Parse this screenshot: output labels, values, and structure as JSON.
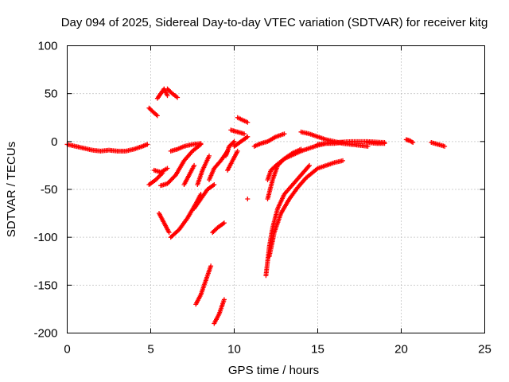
{
  "chart_data": {
    "type": "scatter",
    "title": "Day 094 of 2025, Sidereal Day-to-day VTEC variation (SDTVAR) for receiver kitg",
    "xlabel": "GPS time / hours",
    "ylabel": "SDTVAR / TECUs",
    "xlim": [
      0,
      25
    ],
    "ylim": [
      -200,
      100
    ],
    "xticks": [
      0,
      5,
      10,
      15,
      20,
      25
    ],
    "yticks": [
      -200,
      -150,
      -100,
      -50,
      0,
      50,
      100
    ],
    "grid": true,
    "marker": "+",
    "color": "#ff0000",
    "segments": [
      {
        "x": [
          0.0,
          0.5,
          1.0,
          1.5,
          2.0,
          2.5,
          3.0,
          3.5,
          4.0,
          4.5,
          4.8
        ],
        "y": [
          -3,
          -5,
          -7,
          -9,
          -10,
          -9,
          -10,
          -10,
          -8,
          -5,
          -3
        ]
      },
      {
        "x": [
          4.9,
          5.2,
          5.4
        ],
        "y": [
          35,
          30,
          27
        ]
      },
      {
        "x": [
          5.4,
          5.6,
          5.8,
          6.0
        ],
        "y": [
          45,
          50,
          55,
          48
        ]
      },
      {
        "x": [
          6.0,
          6.3,
          6.6
        ],
        "y": [
          55,
          50,
          46
        ]
      },
      {
        "x": [
          4.9,
          5.3,
          5.7
        ],
        "y": [
          -45,
          -40,
          -33
        ]
      },
      {
        "x": [
          5.2,
          5.6,
          6.0
        ],
        "y": [
          -30,
          -32,
          -28
        ]
      },
      {
        "x": [
          5.6,
          6.0,
          6.5,
          7.0,
          7.5,
          8.0
        ],
        "y": [
          -46,
          -44,
          -35,
          -20,
          -10,
          -3
        ]
      },
      {
        "x": [
          6.2,
          6.6,
          7.0,
          7.5,
          8.0
        ],
        "y": [
          -10,
          -8,
          -5,
          -3,
          -2
        ]
      },
      {
        "x": [
          5.5,
          5.8,
          6.1
        ],
        "y": [
          -75,
          -85,
          -95
        ]
      },
      {
        "x": [
          6.2,
          6.7,
          7.2,
          7.7,
          8.0
        ],
        "y": [
          -100,
          -92,
          -80,
          -65,
          -55
        ]
      },
      {
        "x": [
          7.0,
          7.3,
          7.6
        ],
        "y": [
          -45,
          -35,
          -25
        ]
      },
      {
        "x": [
          7.6,
          8.0,
          8.4,
          8.8
        ],
        "y": [
          -70,
          -60,
          -50,
          -45
        ]
      },
      {
        "x": [
          7.8,
          8.1,
          8.5
        ],
        "y": [
          -45,
          -30,
          -15
        ]
      },
      {
        "x": [
          8.5,
          8.8,
          9.2,
          9.6
        ],
        "y": [
          -40,
          -28,
          -20,
          -10
        ]
      },
      {
        "x": [
          8.7,
          9.0,
          9.4
        ],
        "y": [
          -95,
          -90,
          -85
        ]
      },
      {
        "x": [
          7.7,
          8.0,
          8.3,
          8.6
        ],
        "y": [
          -170,
          -160,
          -145,
          -130
        ]
      },
      {
        "x": [
          8.8,
          9.1,
          9.4
        ],
        "y": [
          -190,
          -180,
          -165
        ]
      },
      {
        "x": [
          9.6,
          9.9,
          10.2
        ],
        "y": [
          -30,
          -20,
          -10
        ]
      },
      {
        "x": [
          9.5,
          9.7,
          10.0
        ],
        "y": [
          -15,
          -5,
          0
        ]
      },
      {
        "x": [
          9.8,
          10.2,
          10.6
        ],
        "y": [
          12,
          10,
          8
        ]
      },
      {
        "x": [
          10.0,
          10.4,
          10.8
        ],
        "y": [
          -5,
          0,
          5
        ]
      },
      {
        "x": [
          10.2,
          10.8
        ],
        "y": [
          25,
          20
        ]
      },
      {
        "x": [
          10.8
        ],
        "y": [
          -60
        ]
      },
      {
        "x": [
          11.2,
          11.6,
          12.0,
          12.5,
          13.0
        ],
        "y": [
          -5,
          -2,
          0,
          5,
          8
        ]
      },
      {
        "x": [
          12.0,
          12.2,
          12.5,
          13.0,
          13.5,
          14.0,
          14.5,
          15.0,
          15.5,
          16.0,
          17.0,
          18.0,
          19.0
        ],
        "y": [
          -40,
          -30,
          -25,
          -18,
          -14,
          -10,
          -7,
          -4,
          -2,
          -1,
          0,
          0,
          -1
        ]
      },
      {
        "x": [
          12.0,
          12.3,
          12.6,
          13.0,
          13.5,
          14.0
        ],
        "y": [
          -60,
          -40,
          -25,
          -18,
          -12,
          -8
        ]
      },
      {
        "x": [
          11.9,
          12.1,
          12.3,
          12.6,
          13.0,
          13.5,
          14.0,
          14.5
        ],
        "y": [
          -140,
          -110,
          -90,
          -70,
          -55,
          -45,
          -35,
          -25
        ]
      },
      {
        "x": [
          12.1,
          12.4,
          12.8,
          13.3,
          13.8,
          14.3,
          15.0,
          15.5,
          16.0,
          16.5
        ],
        "y": [
          -120,
          -95,
          -75,
          -60,
          -48,
          -38,
          -28,
          -25,
          -22,
          -20
        ]
      },
      {
        "x": [
          14.0,
          14.5,
          15.0,
          15.5,
          16.0,
          16.5,
          17.0,
          17.5,
          18.0
        ],
        "y": [
          10,
          8,
          5,
          2,
          0,
          -2,
          -3,
          -4,
          -5
        ]
      },
      {
        "x": [
          15.0,
          15.5,
          16.0,
          16.5
        ],
        "y": [
          -3,
          -2,
          -2,
          -1
        ]
      },
      {
        "x": [
          18.0,
          18.5,
          19.0
        ],
        "y": [
          -1,
          -2,
          -2
        ]
      },
      {
        "x": [
          20.3,
          20.5,
          20.7
        ],
        "y": [
          2,
          1,
          -1
        ]
      },
      {
        "x": [
          21.8,
          22.2,
          22.6
        ],
        "y": [
          -1,
          -3,
          -5
        ]
      }
    ]
  }
}
